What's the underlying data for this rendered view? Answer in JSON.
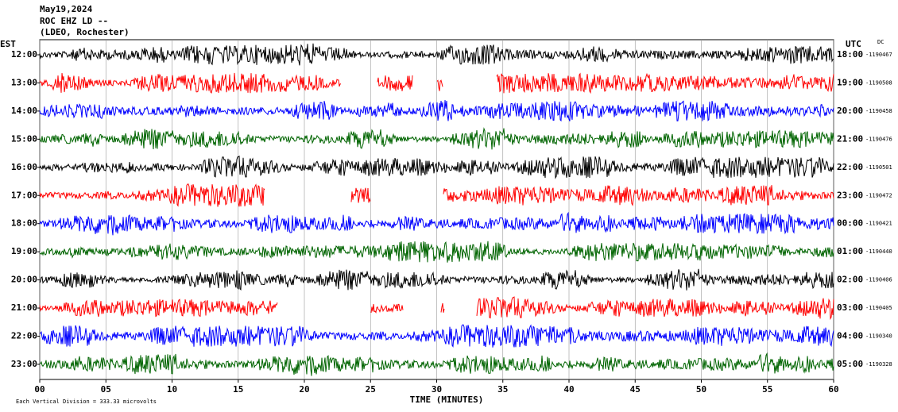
{
  "header": {
    "date": "May19,2024",
    "station": "ROC EHZ LD --",
    "location": "(LDEO, Rochester)"
  },
  "axis": {
    "left_title": "EST",
    "right_title": "UTC",
    "dc_title": "DC",
    "xlabel": "TIME (MINUTES)",
    "xlim": [
      0,
      60
    ],
    "xticks": [
      {
        "value": 0,
        "label": "00"
      },
      {
        "value": 5,
        "label": "05"
      },
      10,
      15,
      20,
      25,
      30,
      35,
      40,
      45,
      50,
      55,
      60
    ]
  },
  "rows": [
    {
      "est": "12:00",
      "utc": "18:00",
      "dc": "-1190467",
      "color": "#000000",
      "gaps": []
    },
    {
      "est": "13:00",
      "utc": "19:00",
      "dc": "-1190508",
      "color": "#ff0000",
      "gaps": [
        [
          22.8,
          25.5
        ],
        [
          28.2,
          30.0
        ],
        [
          30.5,
          34.5
        ]
      ]
    },
    {
      "est": "14:00",
      "utc": "20:00",
      "dc": "-1190458",
      "color": "#0000ff",
      "gaps": []
    },
    {
      "est": "15:00",
      "utc": "21:00",
      "dc": "-1190476",
      "color": "#006400",
      "gaps": []
    },
    {
      "est": "16:00",
      "utc": "22:00",
      "dc": "-1190501",
      "color": "#000000",
      "gaps": []
    },
    {
      "est": "17:00",
      "utc": "23:00",
      "dc": "-1190472",
      "color": "#ff0000",
      "gaps": [
        [
          17.0,
          23.5
        ],
        [
          25.0,
          30.5
        ]
      ]
    },
    {
      "est": "18:00",
      "utc": "00:00",
      "dc": "-1190421",
      "color": "#0000ff",
      "gaps": []
    },
    {
      "est": "19:00",
      "utc": "01:00",
      "dc": "-1190440",
      "color": "#006400",
      "gaps": []
    },
    {
      "est": "20:00",
      "utc": "02:00",
      "dc": "-1190406",
      "color": "#000000",
      "gaps": []
    },
    {
      "est": "21:00",
      "utc": "03:00",
      "dc": "-1190405",
      "color": "#ff0000",
      "gaps": [
        [
          18.0,
          25.0
        ],
        [
          27.5,
          30.3
        ],
        [
          30.6,
          33.0
        ]
      ]
    },
    {
      "est": "22:00",
      "utc": "04:00",
      "dc": "-1190340",
      "color": "#0000ff",
      "gaps": []
    },
    {
      "est": "23:00",
      "utc": "05:00",
      "dc": "-1190328",
      "color": "#006400",
      "gaps": []
    }
  ],
  "footer": "Each Vertical Division =  333.33 microvolts"
}
